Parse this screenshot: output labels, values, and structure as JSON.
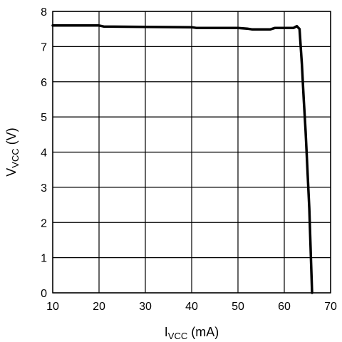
{
  "chart_data": {
    "type": "line",
    "title": "",
    "xlabel": {
      "main": "I",
      "sub": "VCC",
      "unit": " (mA)"
    },
    "ylabel": {
      "main": "V",
      "sub": "VCC",
      "unit": " (V)"
    },
    "xlim": [
      10,
      70
    ],
    "ylim": [
      0,
      8
    ],
    "xticks": [
      10,
      20,
      30,
      40,
      50,
      60,
      70
    ],
    "yticks": [
      0,
      1,
      2,
      3,
      4,
      5,
      6,
      7,
      8
    ],
    "grid": true,
    "legend": "none",
    "line_color": "#000000",
    "series": [
      {
        "x": [
          10,
          20,
          21,
          30,
          40,
          41,
          50,
          52,
          53,
          57,
          58,
          62,
          62.7,
          63.3,
          63.8,
          64.2,
          64.6,
          65,
          65.4,
          65.8,
          66
        ],
        "y": [
          7.6,
          7.6,
          7.57,
          7.56,
          7.55,
          7.53,
          7.53,
          7.51,
          7.49,
          7.49,
          7.53,
          7.53,
          7.58,
          7.5,
          6.5,
          5.5,
          4.6,
          3.5,
          2.4,
          0.8,
          0
        ]
      }
    ]
  }
}
